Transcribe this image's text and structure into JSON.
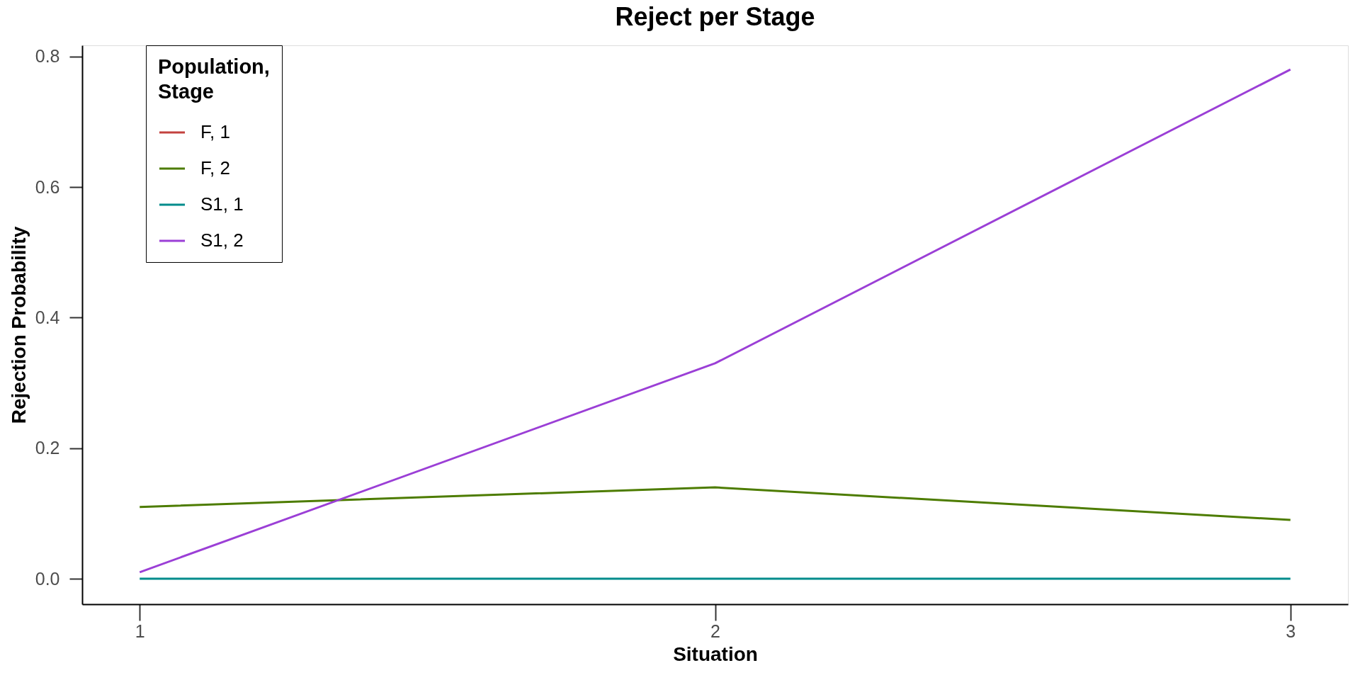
{
  "chart_data": {
    "type": "line",
    "title": "Reject per Stage",
    "xlabel": "Situation",
    "ylabel": "Rejection Probability",
    "legend_title": "Population,\nStage",
    "x": [
      1,
      2,
      3
    ],
    "series": [
      {
        "name": "F, 1",
        "color": "#c3423f",
        "values": [
          null,
          null,
          null
        ]
      },
      {
        "name": "F, 2",
        "color": "#4d7c00",
        "values": [
          0.11,
          0.14,
          0.09
        ]
      },
      {
        "name": "S1, 1",
        "color": "#008c8c",
        "values": [
          0,
          0,
          0
        ]
      },
      {
        "name": "S1, 2",
        "color": "#9b3fd6",
        "values": [
          0.01,
          0.33,
          0.78
        ]
      }
    ],
    "xlim": [
      0.9,
      3.1
    ],
    "xticks": [
      1,
      2,
      3
    ],
    "ylim": [
      -0.039,
      0.817
    ],
    "yticks": [
      {
        "value": 0,
        "label": "0.0"
      },
      0.2,
      0.4,
      0.6,
      0.8
    ],
    "grid": false,
    "legend": "top left",
    "line_style": "solid"
  }
}
